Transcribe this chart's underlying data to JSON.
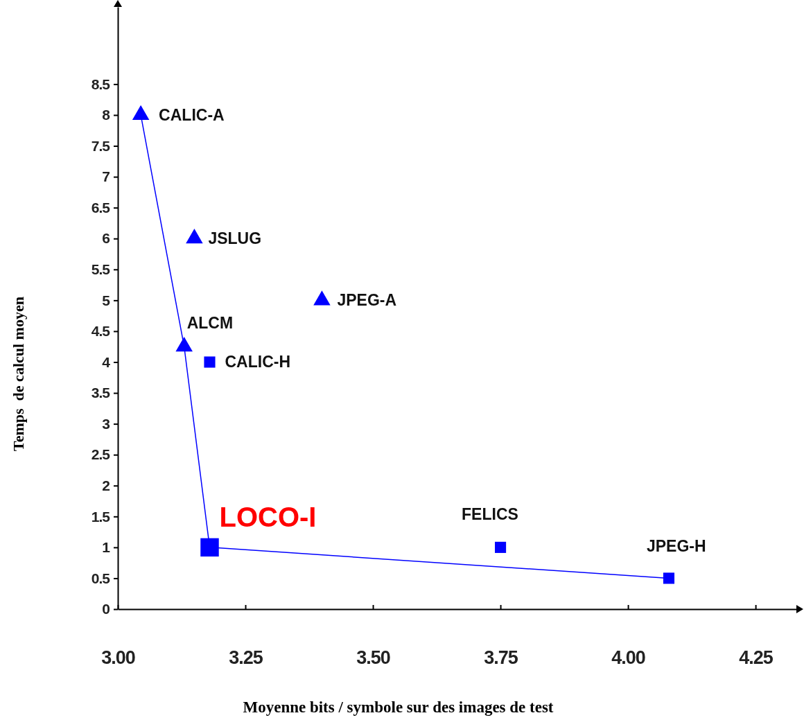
{
  "chart_data": {
    "type": "scatter",
    "xlabel": "Moyenne bits / symbole sur des images de test",
    "ylabel": "Temps  de calcul moyen",
    "xlim": [
      3.0,
      4.33
    ],
    "ylim": [
      0,
      9.75
    ],
    "xticks": [
      {
        "value": 3.0,
        "label": "3.00"
      },
      {
        "value": 3.25,
        "label": "3.25"
      },
      {
        "value": 3.5,
        "label": "3.50"
      },
      {
        "value": 3.75,
        "label": "3.75"
      },
      {
        "value": 4.0,
        "label": "4.00"
      },
      {
        "value": 4.25,
        "label": "4.25"
      }
    ],
    "yticks": [
      0,
      0.5,
      1,
      1.5,
      2,
      2.5,
      3,
      3.5,
      4,
      4.5,
      5,
      5.5,
      6,
      6.5,
      7,
      7.5,
      8,
      8.5
    ],
    "grid": false,
    "series": [
      {
        "type": "line",
        "color": "#0000ff",
        "marker": "none",
        "x": [
          3.045,
          3.13,
          3.18,
          4.08
        ],
        "values": [
          8,
          4.25,
          1,
          0.5
        ]
      },
      {
        "color": "#0000ff",
        "marker": "triangle",
        "x": [
          3.045,
          3.15,
          3.4,
          3.13
        ],
        "values": [
          8,
          6,
          5,
          4.25
        ]
      },
      {
        "color": "#0000ff",
        "marker": "square",
        "x": [
          3.18,
          3.75,
          4.08
        ],
        "values": [
          4,
          1,
          0.5
        ]
      },
      {
        "color": "#0000ff",
        "marker": "square",
        "x": [
          3.18
        ],
        "values": [
          1
        ]
      }
    ],
    "annotations": [
      {
        "text": "CALIC-A",
        "x": 3.045,
        "y": 8
      },
      {
        "text": "JSLUG",
        "x": 3.15,
        "y": 6
      },
      {
        "text": "JPEG-A",
        "x": 3.4,
        "y": 5
      },
      {
        "text": "ALCM",
        "x": 3.13,
        "y": 4.25
      },
      {
        "text": "CALIC-H",
        "x": 3.18,
        "y": 4
      },
      {
        "text": "LOCO-I",
        "x": 3.18,
        "y": 1
      },
      {
        "text": "FELICS",
        "x": 3.75,
        "y": 1
      },
      {
        "text": "JPEG-H",
        "x": 4.08,
        "y": 0.5
      }
    ]
  }
}
